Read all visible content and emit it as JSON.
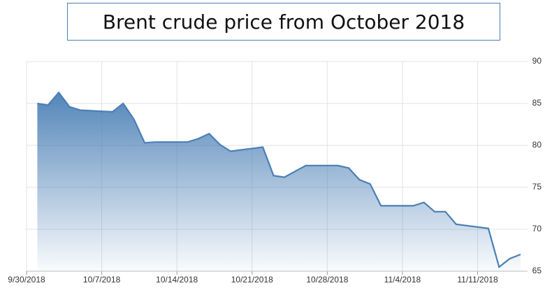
{
  "chart_data": {
    "type": "area",
    "title": "Brent crude price from October 2018",
    "x": [
      "10/1/2018",
      "10/2/2018",
      "10/3/2018",
      "10/4/2018",
      "10/5/2018",
      "10/8/2018",
      "10/9/2018",
      "10/10/2018",
      "10/11/2018",
      "10/12/2018",
      "10/15/2018",
      "10/16/2018",
      "10/17/2018",
      "10/18/2018",
      "10/19/2018",
      "10/22/2018",
      "10/23/2018",
      "10/24/2018",
      "10/25/2018",
      "10/26/2018",
      "10/29/2018",
      "10/30/2018",
      "10/31/2018",
      "11/1/2018",
      "11/2/2018",
      "11/5/2018",
      "11/6/2018",
      "11/7/2018",
      "11/8/2018",
      "11/9/2018",
      "11/12/2018",
      "11/13/2018",
      "11/14/2018",
      "11/15/2018"
    ],
    "series": [
      {
        "name": "Brent",
        "color": "#4a7fb5",
        "values": [
          85.0,
          84.8,
          86.3,
          84.6,
          84.2,
          84.0,
          85.0,
          83.1,
          80.3,
          80.4,
          80.4,
          80.8,
          81.4,
          80.1,
          79.3,
          79.8,
          76.4,
          76.2,
          76.9,
          77.6,
          77.6,
          77.3,
          75.9,
          75.4,
          72.8,
          72.8,
          73.2,
          72.1,
          72.1,
          70.6,
          70.1,
          65.5,
          66.5,
          67.0
        ]
      }
    ],
    "xlim": [
      "9/30/2018",
      "11/15/2018"
    ],
    "xticks": [
      "9/30/2018",
      "10/7/2018",
      "10/14/2018",
      "10/21/2018",
      "10/28/2018",
      "11/4/2018",
      "11/11/2018"
    ],
    "ylim": [
      65,
      90
    ],
    "yticks": [
      65,
      70,
      75,
      80,
      85,
      90
    ],
    "grid": true
  }
}
